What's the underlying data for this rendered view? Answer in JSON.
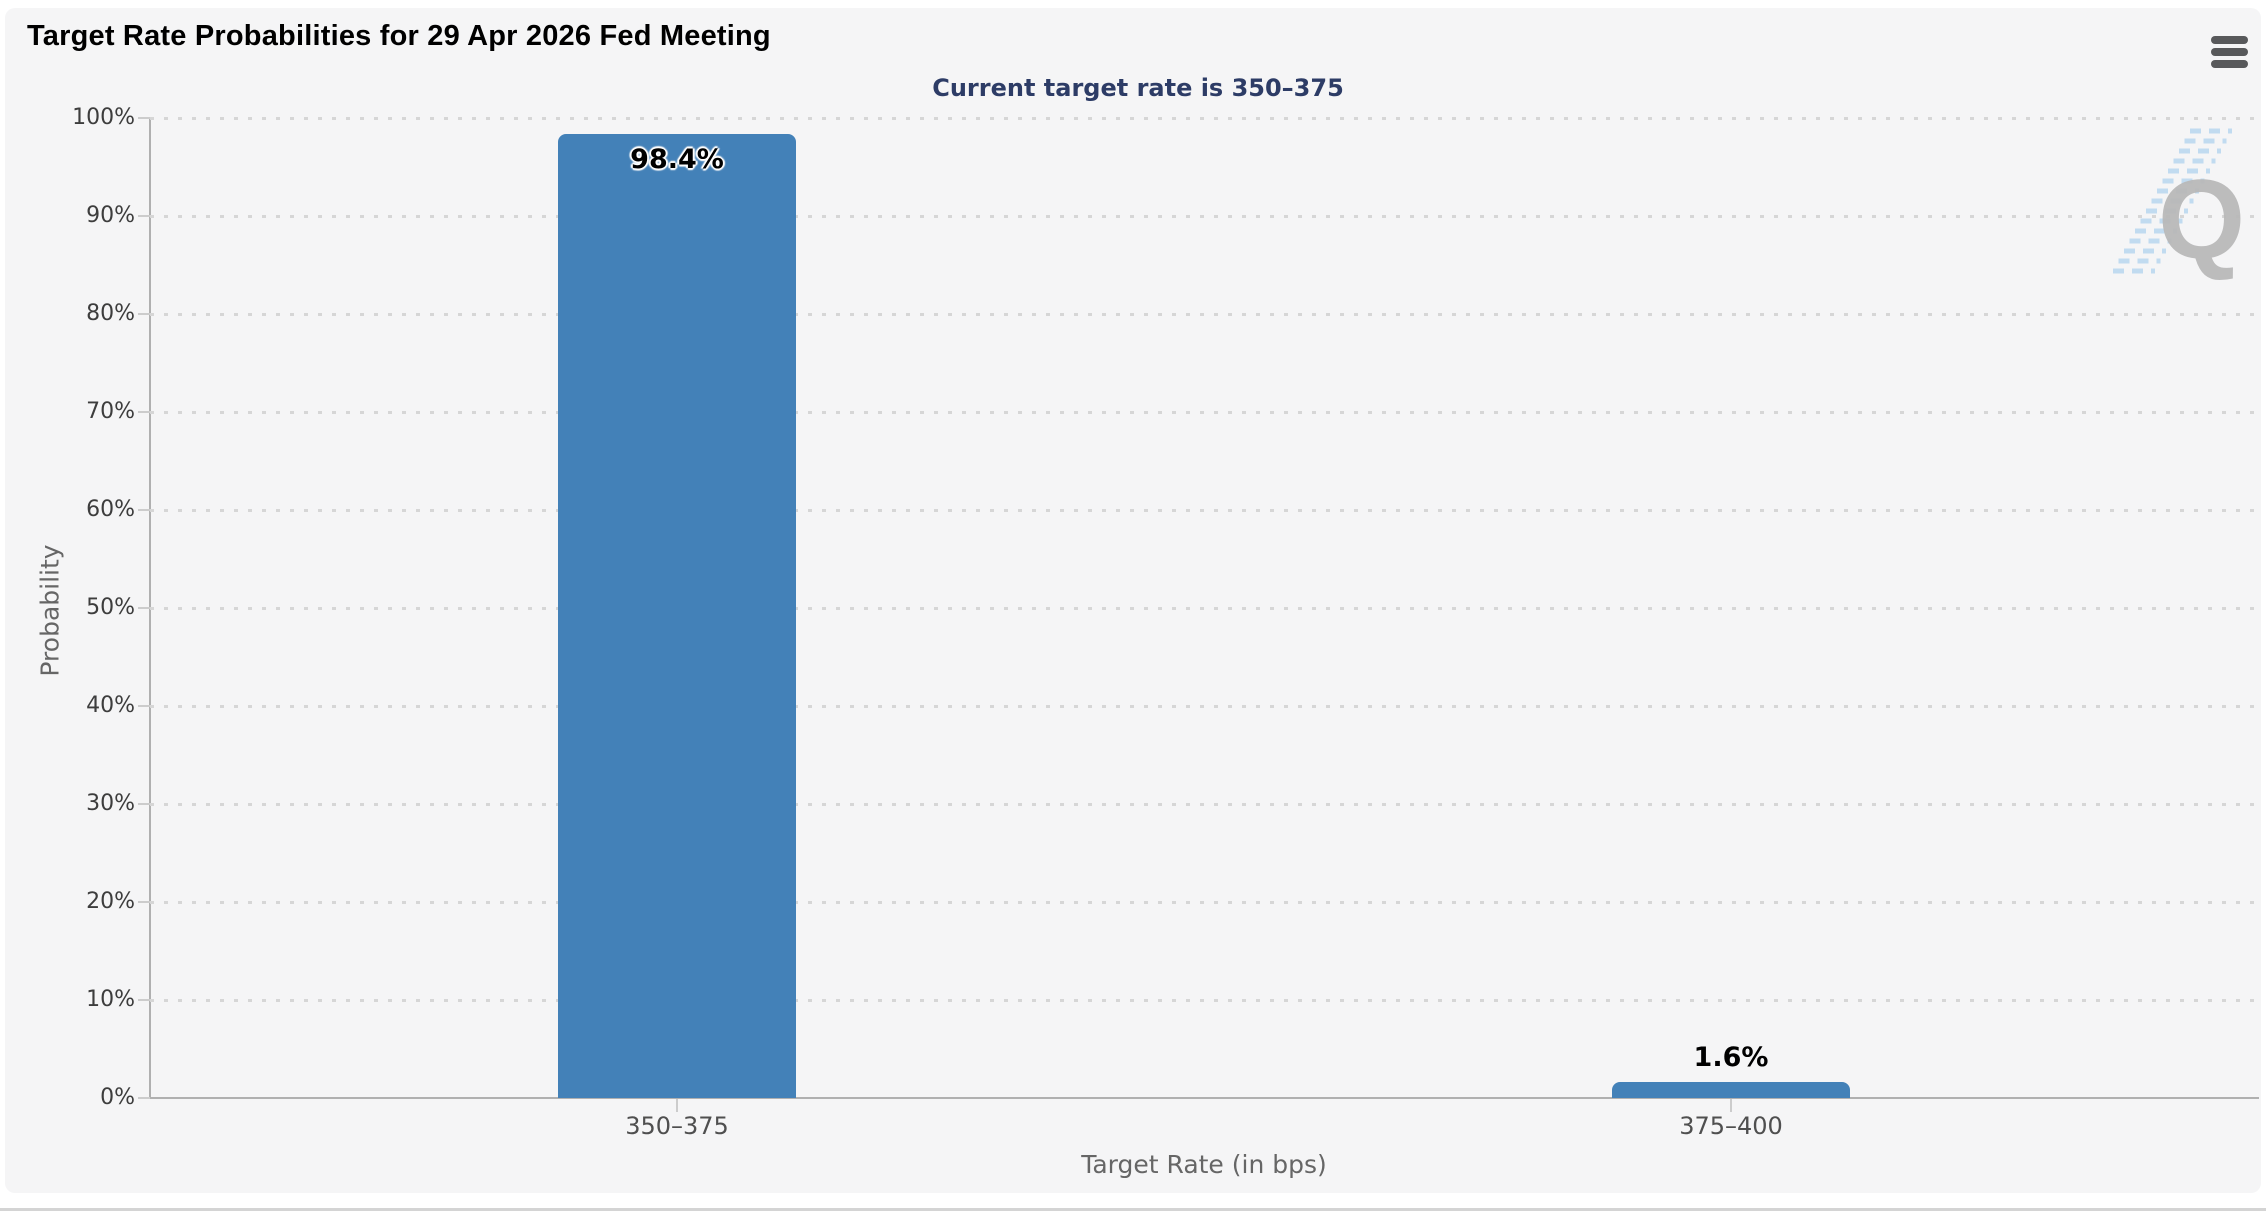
{
  "page": {
    "background": "#ffffff",
    "card_background": "#f5f5f6"
  },
  "header": {
    "menu_icon": "hamburger-icon"
  },
  "chart_data": {
    "type": "bar",
    "title": "Target Rate Probabilities for 29 Apr 2026 Fed Meeting",
    "subtitle": "Current target rate is 350–375",
    "categories": [
      "350–375",
      "375–400"
    ],
    "values": [
      98.4,
      1.6
    ],
    "value_labels": [
      "98.4%",
      "1.6%"
    ],
    "xlabel": "Target Rate (in bps)",
    "ylabel": "Probability",
    "ylim": [
      0,
      100
    ],
    "ytick_step": 10,
    "ytick_suffix": "%",
    "grid": "dotted-horizontal",
    "legend_position": "none",
    "watermark": "Q"
  },
  "colors": {
    "bar": "#4381b8",
    "title": "#000000",
    "subtitle": "#2d3c66",
    "axis": "#b0b0b0",
    "gridline": "#d6d6d6",
    "ytick_label": "#3d3d3d",
    "category_label": "#4f4f4f",
    "axis_title": "#666666",
    "menu_icon": "#58595b",
    "watermark_q": "#b9b9b9",
    "watermark_hatch": "#b5d5ef"
  }
}
